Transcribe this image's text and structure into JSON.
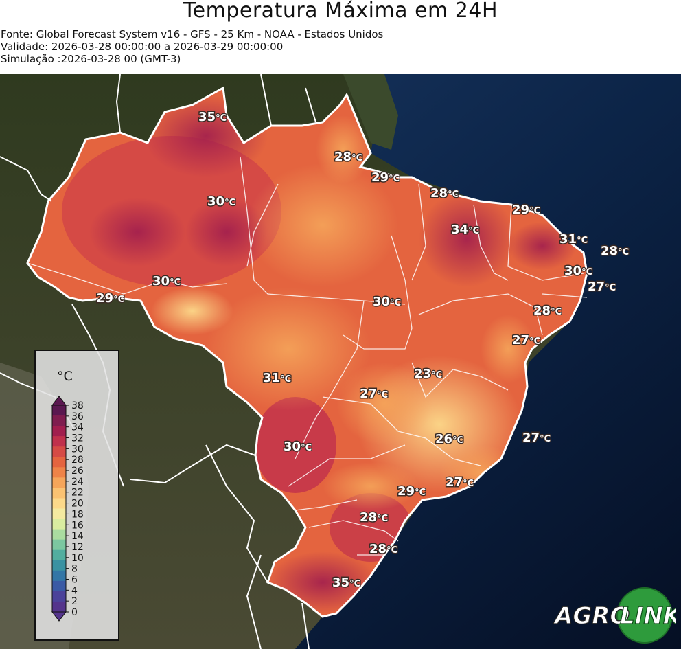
{
  "header": {
    "title": "Temperatura Máxima em 24H",
    "source": "Fonte: Global Forecast System v16 - GFS - 25 Km - NOAA - Estados Unidos",
    "validity": "Validade: 2026-03-28 00:00:00 a 2026-03-29 00:00:00",
    "simulation": "Simulação :2026-03-28 00 (GMT-3)"
  },
  "legend": {
    "unit": "°C",
    "ticks": [
      "38",
      "36",
      "34",
      "32",
      "30",
      "28",
      "26",
      "24",
      "22",
      "20",
      "18",
      "16",
      "14",
      "12",
      "10",
      "8",
      "6",
      "4",
      "2",
      "0"
    ],
    "colors": [
      "#5a1850",
      "#7f1d4f",
      "#a11e4e",
      "#c0304c",
      "#d54a45",
      "#e4643f",
      "#ee8348",
      "#f5a55a",
      "#fac272",
      "#fcd98a",
      "#f4eaa0",
      "#d9eda0",
      "#aadca0",
      "#7cc7a0",
      "#52ae9f",
      "#3a92a2",
      "#3376a6",
      "#3a5aa5",
      "#4b429a",
      "#54348c"
    ]
  },
  "temperature_labels": [
    {
      "value": "35",
      "unit": "°C"
    },
    {
      "value": "28",
      "unit": "°C"
    },
    {
      "value": "29",
      "unit": "°C"
    },
    {
      "value": "30",
      "unit": "°C"
    },
    {
      "value": "28",
      "unit": "°C"
    },
    {
      "value": "34",
      "unit": "°C"
    },
    {
      "value": "29",
      "unit": "°C"
    },
    {
      "value": "31",
      "unit": "°C"
    },
    {
      "value": "28",
      "unit": "°C"
    },
    {
      "value": "30",
      "unit": "°C"
    },
    {
      "value": "27",
      "unit": "°C"
    },
    {
      "value": "30",
      "unit": "°C"
    },
    {
      "value": "29",
      "unit": "°C"
    },
    {
      "value": "30",
      "unit": "°C"
    },
    {
      "value": "28",
      "unit": "°C"
    },
    {
      "value": "27",
      "unit": "°C"
    },
    {
      "value": "23",
      "unit": "°C"
    },
    {
      "value": "31",
      "unit": "°C"
    },
    {
      "value": "27",
      "unit": "°C"
    },
    {
      "value": "26",
      "unit": "°C"
    },
    {
      "value": "27",
      "unit": "°C"
    },
    {
      "value": "30",
      "unit": "°C"
    },
    {
      "value": "29",
      "unit": "°C"
    },
    {
      "value": "27",
      "unit": "°C"
    },
    {
      "value": "28",
      "unit": "°C"
    },
    {
      "value": "28",
      "unit": "°C"
    },
    {
      "value": "35",
      "unit": "°C"
    }
  ],
  "logo": {
    "part1": "AGRO",
    "part2": "LINK"
  },
  "colors": {
    "ocean": "#0c2447",
    "land": "#3a3f24",
    "warm": "#e4643f",
    "hot": "#c0304c",
    "mild": "#fac272"
  }
}
